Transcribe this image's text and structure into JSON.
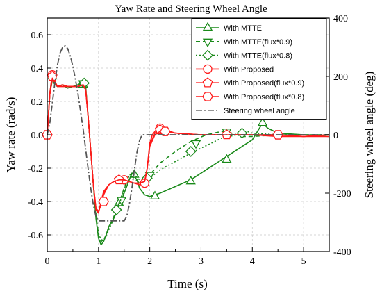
{
  "chart_data": {
    "type": "line",
    "title": "Yaw Rate and Steering Wheel Angle",
    "xlabel": "Time (s)",
    "ylabel": "Yaw rate (rad/s)",
    "y2label": "Steering wheel angle (deg)",
    "xlim": [
      0,
      5.5
    ],
    "ylim": [
      -0.7,
      0.7
    ],
    "y2lim": [
      -400,
      400
    ],
    "xticks": [
      "0",
      "1",
      "2",
      "3",
      "4",
      "5"
    ],
    "yticks": [
      "-0.6",
      "-0.4",
      "-0.2",
      "0.0",
      "0.2",
      "0.4",
      "0.6"
    ],
    "y2ticks": [
      "-400",
      "-200",
      "0",
      "200",
      "400"
    ],
    "legend_position": "top-right",
    "series": [
      {
        "name": "With MTTE",
        "axis": "left",
        "color": "#1a8a1a",
        "dash": "solid",
        "marker": "triangle-up",
        "x": [
          0,
          0.05,
          0.1,
          0.15,
          0.2,
          0.3,
          0.4,
          0.5,
          0.6,
          0.7,
          0.75,
          0.8,
          0.85,
          0.9,
          0.95,
          1.0,
          1.05,
          1.1,
          1.15,
          1.2,
          1.3,
          1.4,
          1.5,
          1.6,
          1.65,
          1.7,
          1.75,
          1.8,
          1.9,
          2.0,
          2.2,
          2.5,
          2.8,
          3.0,
          3.2,
          3.4,
          3.6,
          3.8,
          4.0,
          4.1,
          4.2,
          4.3,
          4.5,
          5.0,
          5.5
        ],
        "y": [
          0.0,
          0.25,
          0.35,
          0.31,
          0.29,
          0.3,
          0.28,
          0.29,
          0.3,
          0.32,
          0.28,
          0.1,
          -0.1,
          -0.3,
          -0.5,
          -0.62,
          -0.66,
          -0.64,
          -0.6,
          -0.55,
          -0.5,
          -0.43,
          -0.35,
          -0.27,
          -0.23,
          -0.25,
          -0.27,
          -0.32,
          -0.36,
          -0.37,
          -0.35,
          -0.31,
          -0.27,
          -0.23,
          -0.19,
          -0.15,
          -0.11,
          -0.07,
          -0.03,
          0.02,
          0.07,
          0.04,
          0.01,
          0.0,
          -0.01
        ],
        "marker_x": [
          0.1,
          0.7,
          1.4,
          1.7,
          2.1,
          2.8,
          3.5,
          4.2
        ],
        "marker_y": [
          0.35,
          0.3,
          -0.41,
          -0.24,
          -0.37,
          -0.28,
          -0.15,
          0.07
        ]
      },
      {
        "name": "With MTTE(flux*0.9)",
        "axis": "left",
        "color": "#1a8a1a",
        "dash": "dash",
        "marker": "triangle-down",
        "x": [
          0,
          0.05,
          0.1,
          0.15,
          0.2,
          0.3,
          0.4,
          0.5,
          0.6,
          0.7,
          0.75,
          0.8,
          0.85,
          0.9,
          0.95,
          1.0,
          1.05,
          1.1,
          1.15,
          1.2,
          1.3,
          1.4,
          1.5,
          1.6,
          1.7,
          1.8,
          1.9,
          2.0,
          2.2,
          2.5,
          2.8,
          3.1,
          3.4,
          3.6,
          3.7,
          3.8,
          4.0,
          4.5,
          5.0,
          5.5
        ],
        "y": [
          0.0,
          0.24,
          0.33,
          0.3,
          0.29,
          0.3,
          0.28,
          0.29,
          0.3,
          0.31,
          0.29,
          0.1,
          -0.1,
          -0.3,
          -0.48,
          -0.6,
          -0.64,
          -0.63,
          -0.6,
          -0.56,
          -0.49,
          -0.41,
          -0.32,
          -0.24,
          -0.26,
          -0.29,
          -0.28,
          -0.24,
          -0.17,
          -0.1,
          -0.04,
          0.0,
          0.02,
          0.01,
          0.0,
          -0.01,
          -0.01,
          0.0,
          0.0,
          0.0
        ],
        "marker_x": [
          0.7,
          1.45,
          2.0,
          2.9,
          3.5
        ],
        "marker_y": [
          0.31,
          -0.39,
          -0.24,
          -0.05,
          0.02
        ]
      },
      {
        "name": "With MTTE(flux*0.8)",
        "axis": "left",
        "color": "#1a8a1a",
        "dash": "dot",
        "marker": "diamond",
        "x": [
          0,
          0.05,
          0.1,
          0.15,
          0.2,
          0.3,
          0.4,
          0.5,
          0.6,
          0.7,
          0.75,
          0.8,
          0.85,
          0.9,
          0.95,
          1.0,
          1.05,
          1.1,
          1.15,
          1.2,
          1.3,
          1.4,
          1.5,
          1.6,
          1.7,
          1.8,
          1.9,
          2.0,
          2.2,
          2.5,
          2.8,
          3.0,
          3.2,
          3.4,
          3.7,
          3.8,
          3.9,
          4.0,
          4.5,
          5.0,
          5.5
        ],
        "y": [
          0.0,
          0.24,
          0.33,
          0.3,
          0.29,
          0.3,
          0.28,
          0.29,
          0.3,
          0.31,
          0.28,
          0.1,
          -0.1,
          -0.3,
          -0.48,
          -0.59,
          -0.63,
          -0.63,
          -0.61,
          -0.57,
          -0.5,
          -0.42,
          -0.33,
          -0.24,
          -0.24,
          -0.27,
          -0.27,
          -0.26,
          -0.21,
          -0.16,
          -0.11,
          -0.08,
          -0.05,
          -0.02,
          0.0,
          0.01,
          0.02,
          0.01,
          0.0,
          0.0,
          0.0
        ],
        "marker_x": [
          0.72,
          1.35,
          1.95,
          2.8,
          3.8
        ],
        "marker_y": [
          0.31,
          -0.45,
          -0.26,
          -0.1,
          0.01
        ]
      },
      {
        "name": "With Proposed",
        "axis": "left",
        "color": "#ff1a1a",
        "dash": "solid",
        "marker": "circle",
        "x": [
          0,
          0.05,
          0.1,
          0.15,
          0.2,
          0.3,
          0.4,
          0.5,
          0.6,
          0.7,
          0.75,
          0.8,
          0.85,
          0.9,
          0.95,
          1.0,
          1.05,
          1.1,
          1.2,
          1.3,
          1.4,
          1.5,
          1.6,
          1.7,
          1.8,
          1.9,
          1.95,
          2.0,
          2.05,
          2.1,
          2.15,
          2.2,
          2.3,
          2.5,
          3.0,
          3.5,
          4.0,
          4.5,
          5.0,
          5.5
        ],
        "y": [
          0.0,
          0.25,
          0.37,
          0.32,
          0.29,
          0.3,
          0.29,
          0.29,
          0.29,
          0.3,
          0.27,
          0.1,
          -0.1,
          -0.3,
          -0.45,
          -0.47,
          -0.4,
          -0.34,
          -0.3,
          -0.28,
          -0.27,
          -0.27,
          -0.28,
          -0.29,
          -0.3,
          -0.29,
          -0.2,
          -0.05,
          0.0,
          0.02,
          0.04,
          0.04,
          0.03,
          0.01,
          0.0,
          0.0,
          0.0,
          0.0,
          -0.01,
          -0.01
        ],
        "marker_x": [
          0.1,
          1.5,
          1.9,
          2.2
        ],
        "marker_y": [
          0.36,
          -0.27,
          -0.29,
          0.04
        ]
      },
      {
        "name": "With Proposed(flux*0.9)",
        "axis": "left",
        "color": "#ff1a1a",
        "dash": "solid",
        "marker": "pentagon",
        "x": [
          0,
          0.05,
          0.1,
          0.15,
          0.2,
          0.3,
          0.4,
          0.5,
          0.6,
          0.7,
          0.75,
          0.8,
          0.85,
          0.9,
          0.95,
          1.0,
          1.05,
          1.1,
          1.2,
          1.3,
          1.4,
          1.5,
          1.6,
          1.7,
          1.8,
          1.9,
          1.95,
          2.0,
          2.1,
          2.2,
          2.3,
          2.5,
          3.0,
          3.5,
          4.0,
          4.5,
          5.0,
          5.5
        ],
        "y": [
          0.0,
          0.24,
          0.35,
          0.31,
          0.29,
          0.29,
          0.29,
          0.29,
          0.29,
          0.3,
          0.27,
          0.1,
          -0.1,
          -0.3,
          -0.44,
          -0.46,
          -0.41,
          -0.35,
          -0.3,
          -0.28,
          -0.27,
          -0.27,
          -0.28,
          -0.29,
          -0.29,
          -0.28,
          -0.2,
          -0.06,
          0.01,
          0.03,
          0.02,
          0.01,
          0.0,
          0.0,
          0.0,
          -0.01,
          -0.01,
          0.0
        ],
        "marker_x": [
          0.1,
          1.4,
          2.2,
          3.5
        ],
        "marker_y": [
          0.35,
          -0.27,
          0.03,
          0.0
        ]
      },
      {
        "name": "With Proposed(flux*0.8)",
        "axis": "left",
        "color": "#ff1a1a",
        "dash": "solid",
        "marker": "hexagon",
        "x": [
          0,
          0.05,
          0.1,
          0.15,
          0.2,
          0.3,
          0.4,
          0.5,
          0.6,
          0.7,
          0.75,
          0.8,
          0.85,
          0.9,
          0.95,
          1.0,
          1.05,
          1.1,
          1.2,
          1.3,
          1.4,
          1.5,
          1.6,
          1.7,
          1.8,
          1.9,
          1.95,
          2.0,
          2.1,
          2.2,
          2.3,
          2.5,
          3.0,
          3.5,
          4.0,
          4.5,
          5.0,
          5.5
        ],
        "y": [
          0.0,
          0.24,
          0.34,
          0.31,
          0.29,
          0.29,
          0.29,
          0.29,
          0.29,
          0.3,
          0.27,
          0.1,
          -0.1,
          -0.3,
          -0.44,
          -0.46,
          -0.42,
          -0.36,
          -0.3,
          -0.28,
          -0.27,
          -0.27,
          -0.28,
          -0.29,
          -0.29,
          -0.28,
          -0.2,
          -0.07,
          0.0,
          0.02,
          0.02,
          0.01,
          0.0,
          0.0,
          0.0,
          0.0,
          -0.01,
          0.0
        ],
        "marker_x": [
          0.0,
          1.1,
          2.3,
          4.5
        ],
        "marker_y": [
          0.0,
          -0.4,
          0.02,
          0.0
        ]
      },
      {
        "name": "Steering wheel angle",
        "axis": "right",
        "color": "#555555",
        "dash": "dashdot",
        "marker": "none",
        "x": [
          0,
          0.05,
          0.1,
          0.15,
          0.2,
          0.25,
          0.3,
          0.35,
          0.4,
          0.45,
          0.5,
          0.55,
          0.6,
          0.65,
          0.7,
          0.75,
          0.8,
          0.85,
          0.9,
          0.95,
          1.0,
          1.05,
          1.5,
          1.55,
          1.6,
          1.65,
          1.7,
          1.75,
          1.8,
          1.85,
          1.9,
          1.95,
          2.0,
          2.5,
          3.0,
          3.5,
          4.0,
          4.5,
          5.0,
          5.5
        ],
        "y": [
          0,
          40,
          110,
          180,
          240,
          280,
          300,
          305,
          295,
          270,
          235,
          190,
          140,
          80,
          20,
          -50,
          -120,
          -185,
          -240,
          -280,
          -295,
          -295,
          -295,
          -280,
          -240,
          -185,
          -120,
          -60,
          -20,
          0,
          0,
          0,
          0,
          0,
          0,
          0,
          0,
          0,
          0,
          0
        ]
      }
    ]
  }
}
